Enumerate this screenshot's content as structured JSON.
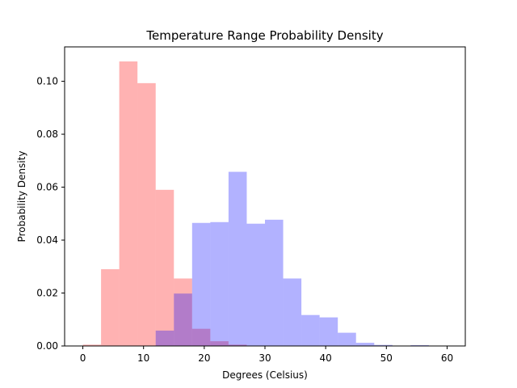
{
  "chart_data": {
    "type": "histogram",
    "title": "Temperature Range Probability Density",
    "xlabel": "Degrees (Celsius)",
    "ylabel": "Probability Density",
    "xlim": [
      -3,
      63
    ],
    "ylim": [
      0,
      0.113
    ],
    "x_ticks": [
      0,
      10,
      20,
      30,
      40,
      50,
      60
    ],
    "x_tick_labels": [
      "0",
      "10",
      "20",
      "30",
      "40",
      "50",
      "60"
    ],
    "y_ticks": [
      0.0,
      0.02,
      0.04,
      0.06,
      0.08,
      0.1
    ],
    "y_tick_labels": [
      "0.00",
      "0.02",
      "0.04",
      "0.06",
      "0.08",
      "0.10"
    ],
    "grid": false,
    "series": [
      {
        "color": "#ff0000",
        "alpha": 0.3,
        "bins": [
          {
            "x0": 0,
            "x1": 3,
            "value": 0.0005
          },
          {
            "x0": 3,
            "x1": 6,
            "value": 0.029
          },
          {
            "x0": 6,
            "x1": 9,
            "value": 0.1075
          },
          {
            "x0": 9,
            "x1": 12,
            "value": 0.0993
          },
          {
            "x0": 12,
            "x1": 15,
            "value": 0.059
          },
          {
            "x0": 15,
            "x1": 18,
            "value": 0.0255
          },
          {
            "x0": 18,
            "x1": 21,
            "value": 0.0065
          },
          {
            "x0": 21,
            "x1": 24,
            "value": 0.0018
          },
          {
            "x0": 24,
            "x1": 27,
            "value": 0.0005
          }
        ]
      },
      {
        "color": "#0000ff",
        "alpha": 0.3,
        "bins": [
          {
            "x0": 12,
            "x1": 15,
            "value": 0.0058
          },
          {
            "x0": 15,
            "x1": 18,
            "value": 0.0198
          },
          {
            "x0": 18,
            "x1": 21,
            "value": 0.0465
          },
          {
            "x0": 21,
            "x1": 24,
            "value": 0.0468
          },
          {
            "x0": 24,
            "x1": 27,
            "value": 0.0658
          },
          {
            "x0": 27,
            "x1": 30,
            "value": 0.0462
          },
          {
            "x0": 30,
            "x1": 33,
            "value": 0.0477
          },
          {
            "x0": 33,
            "x1": 36,
            "value": 0.0255
          },
          {
            "x0": 36,
            "x1": 39,
            "value": 0.0117
          },
          {
            "x0": 39,
            "x1": 42,
            "value": 0.0108
          },
          {
            "x0": 42,
            "x1": 45,
            "value": 0.005
          },
          {
            "x0": 45,
            "x1": 48,
            "value": 0.0012
          },
          {
            "x0": 48,
            "x1": 51,
            "value": 0.0004
          },
          {
            "x0": 54,
            "x1": 57,
            "value": 0.0003
          }
        ]
      }
    ]
  }
}
